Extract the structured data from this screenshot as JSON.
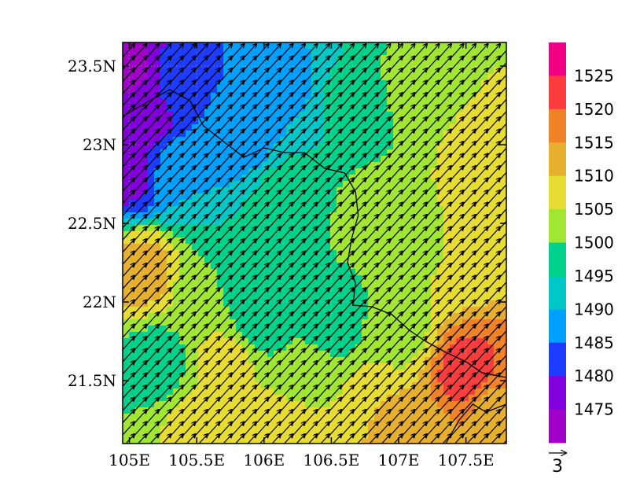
{
  "chart_data": {
    "type": "heatmap",
    "title": "",
    "xlabel": "",
    "ylabel": "",
    "xlim": [
      104.95,
      107.8
    ],
    "ylim": [
      21.1,
      23.65
    ],
    "x_ticks": [
      {
        "value": 105.0,
        "label": "105E"
      },
      {
        "value": 105.5,
        "label": "105.5E"
      },
      {
        "value": 106.0,
        "label": "106E"
      },
      {
        "value": 106.5,
        "label": "106.5E"
      },
      {
        "value": 107.0,
        "label": "107E"
      },
      {
        "value": 107.5,
        "label": "107.5E"
      }
    ],
    "y_ticks": [
      {
        "value": 21.5,
        "label": "21.5N"
      },
      {
        "value": 22.0,
        "label": "22N"
      },
      {
        "value": 22.5,
        "label": "22.5N"
      },
      {
        "value": 23.0,
        "label": "23N"
      },
      {
        "value": 23.5,
        "label": "23.5N"
      }
    ],
    "colorbar": {
      "levels": [
        1475,
        1480,
        1485,
        1490,
        1495,
        1500,
        1505,
        1510,
        1515,
        1520,
        1525
      ],
      "labels": [
        "1475",
        "1480",
        "1485",
        "1490",
        "1495",
        "1500",
        "1505",
        "1510",
        "1515",
        "1520",
        "1525"
      ],
      "colors": [
        "#a000c8",
        "#8200dc",
        "#1e3cff",
        "#00a0ff",
        "#00c8c8",
        "#00d28c",
        "#a0e632",
        "#e6dc32",
        "#e6af2d",
        "#f08228",
        "#fa3c3c",
        "#f00082"
      ]
    },
    "vector_reference": {
      "label": "3",
      "magnitude": 3
    },
    "wind": {
      "direction_deg_from_east": 48,
      "typical_speed": 4.5
    },
    "contour_field": [
      {
        "lon": 105.0,
        "lat": 23.5,
        "value": 1474
      },
      {
        "lon": 105.1,
        "lat": 23.2,
        "value": 1476
      },
      {
        "lon": 105.0,
        "lat": 22.8,
        "value": 1479
      },
      {
        "lon": 105.4,
        "lat": 23.4,
        "value": 1484
      },
      {
        "lon": 105.8,
        "lat": 23.1,
        "value": 1487
      },
      {
        "lon": 105.4,
        "lat": 22.8,
        "value": 1490
      },
      {
        "lon": 106.2,
        "lat": 23.4,
        "value": 1489
      },
      {
        "lon": 106.6,
        "lat": 23.3,
        "value": 1496
      },
      {
        "lon": 107.1,
        "lat": 23.4,
        "value": 1501
      },
      {
        "lon": 107.6,
        "lat": 23.5,
        "value": 1505
      },
      {
        "lon": 107.7,
        "lat": 22.9,
        "value": 1509
      },
      {
        "lon": 106.2,
        "lat": 22.6,
        "value": 1498
      },
      {
        "lon": 106.8,
        "lat": 22.5,
        "value": 1502
      },
      {
        "lon": 107.4,
        "lat": 22.3,
        "value": 1505
      },
      {
        "lon": 105.1,
        "lat": 22.2,
        "value": 1512
      },
      {
        "lon": 105.6,
        "lat": 22.1,
        "value": 1500
      },
      {
        "lon": 106.0,
        "lat": 21.9,
        "value": 1497
      },
      {
        "lon": 106.5,
        "lat": 21.9,
        "value": 1497
      },
      {
        "lon": 107.0,
        "lat": 21.8,
        "value": 1503
      },
      {
        "lon": 105.2,
        "lat": 21.6,
        "value": 1498
      },
      {
        "lon": 105.7,
        "lat": 21.6,
        "value": 1507
      },
      {
        "lon": 106.3,
        "lat": 21.5,
        "value": 1503
      },
      {
        "lon": 106.9,
        "lat": 21.3,
        "value": 1510
      },
      {
        "lon": 107.5,
        "lat": 21.55,
        "value": 1522
      },
      {
        "lon": 107.7,
        "lat": 21.3,
        "value": 1514
      },
      {
        "lon": 105.5,
        "lat": 21.2,
        "value": 1506
      },
      {
        "lon": 106.2,
        "lat": 21.2,
        "value": 1509
      },
      {
        "lon": 107.1,
        "lat": 21.15,
        "value": 1512
      }
    ],
    "borders": [
      [
        [
          104.95,
          23.18
        ],
        [
          105.15,
          23.28
        ],
        [
          105.3,
          23.35
        ],
        [
          105.45,
          23.28
        ],
        [
          105.55,
          23.12
        ],
        [
          105.7,
          23.02
        ],
        [
          105.85,
          22.92
        ],
        [
          106.0,
          22.98
        ],
        [
          106.15,
          22.95
        ],
        [
          106.3,
          22.95
        ],
        [
          106.45,
          22.85
        ],
        [
          106.6,
          22.82
        ],
        [
          106.68,
          22.7
        ],
        [
          106.7,
          22.55
        ],
        [
          106.65,
          22.4
        ],
        [
          106.62,
          22.25
        ],
        [
          106.68,
          22.12
        ],
        [
          106.66,
          21.98
        ],
        [
          106.8,
          21.97
        ],
        [
          106.95,
          21.92
        ],
        [
          107.08,
          21.82
        ],
        [
          107.2,
          21.75
        ],
        [
          107.35,
          21.68
        ],
        [
          107.5,
          21.62
        ],
        [
          107.62,
          21.55
        ],
        [
          107.8,
          21.52
        ]
      ],
      [
        [
          107.35,
          21.1
        ],
        [
          107.45,
          21.25
        ],
        [
          107.55,
          21.35
        ],
        [
          107.65,
          21.3
        ],
        [
          107.8,
          21.35
        ]
      ]
    ]
  }
}
